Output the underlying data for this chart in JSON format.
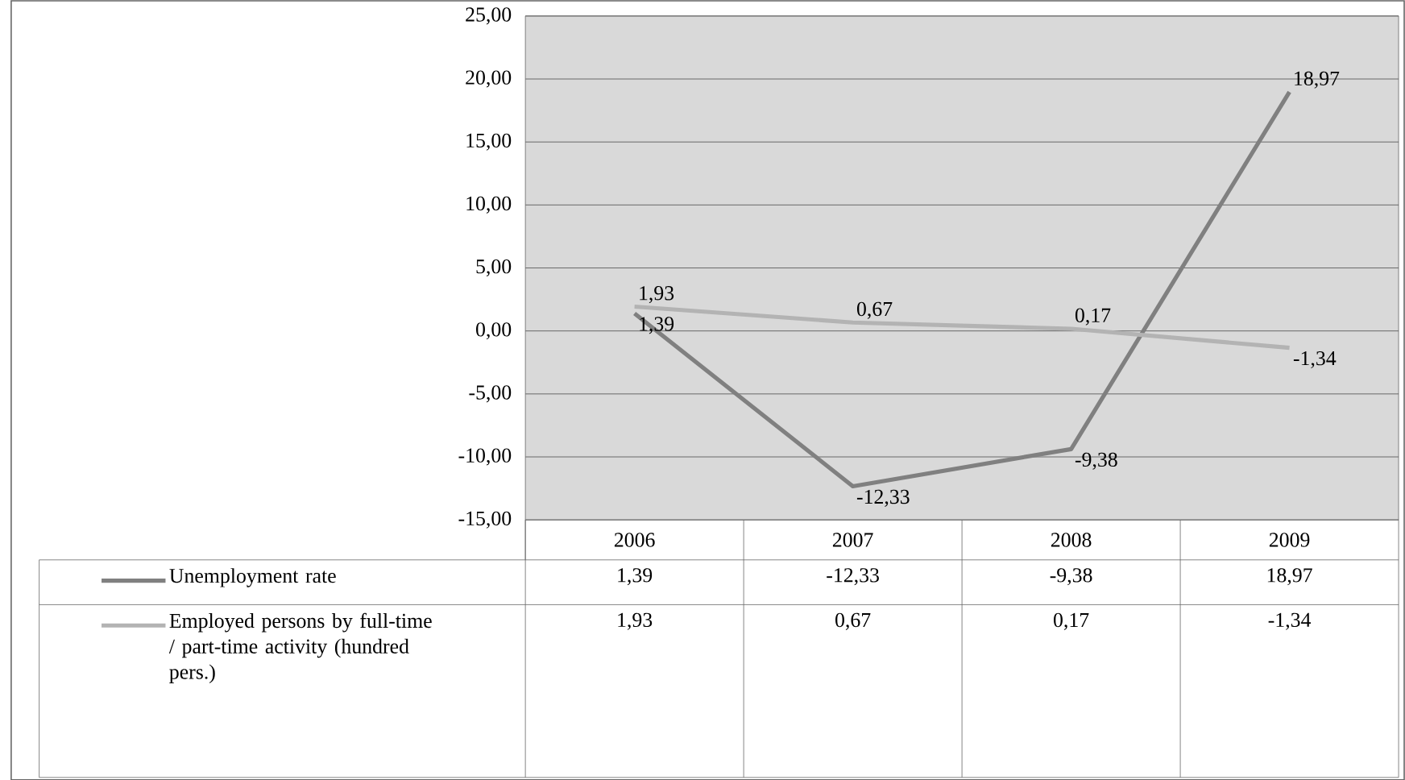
{
  "chart_data": {
    "type": "line",
    "categories": [
      "2006",
      "2007",
      "2008",
      "2009"
    ],
    "series": [
      {
        "name": "Unemployment rate",
        "color": "#808080",
        "values": [
          1.39,
          -12.33,
          -9.38,
          18.97
        ],
        "value_labels": [
          "1,39",
          "-12,33",
          "-9,38",
          "18,97"
        ]
      },
      {
        "name": "Employed persons by full-time / part-time activity (hundred pers.)",
        "color": "#b3b3b3",
        "values": [
          1.93,
          0.67,
          0.17,
          -1.34
        ],
        "value_labels": [
          "1,93",
          "0,67",
          "0,17",
          "-1,34"
        ]
      }
    ],
    "ylim": [
      -15,
      25
    ],
    "yticks": [
      {
        "value": -15,
        "label": "-15,00"
      },
      {
        "value": -10,
        "label": "-10,00"
      },
      {
        "value": -5,
        "label": "-5,00"
      },
      {
        "value": 0,
        "label": "0,00"
      },
      {
        "value": 5,
        "label": "5,00"
      },
      {
        "value": 10,
        "label": "10,00"
      },
      {
        "value": 15,
        "label": "15,00"
      },
      {
        "value": 20,
        "label": "20,00"
      },
      {
        "value": 25,
        "label": "25,00"
      }
    ],
    "grid": "y",
    "legend": "bottom",
    "marker": "none",
    "line_style": "solid"
  }
}
